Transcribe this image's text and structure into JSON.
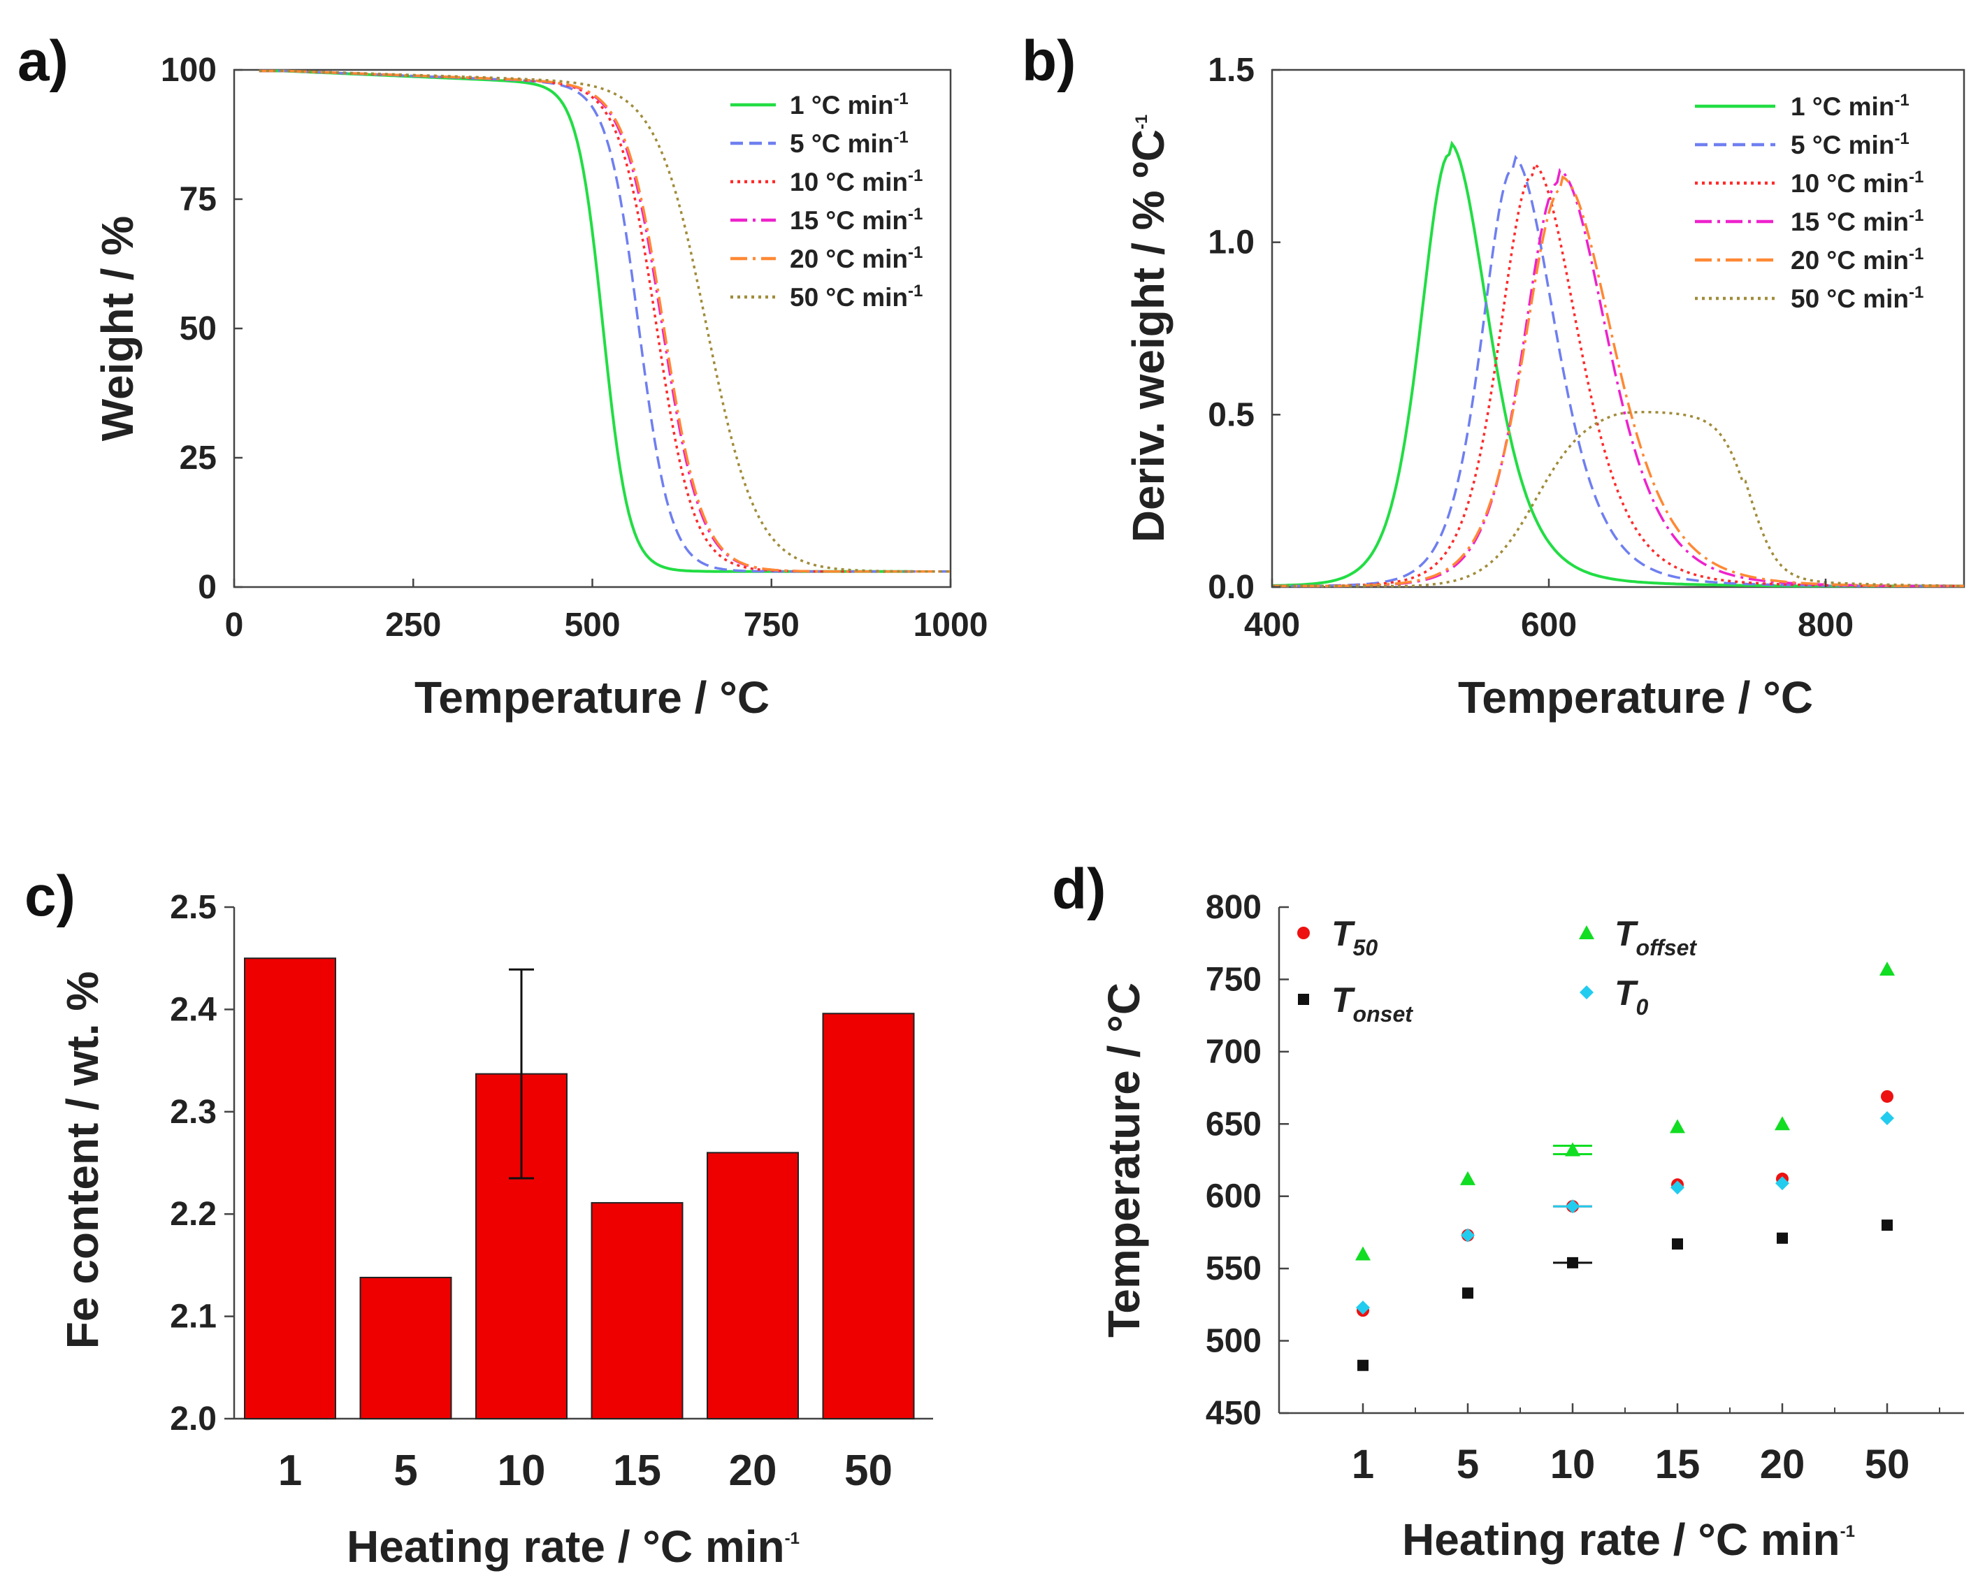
{
  "figure": {
    "panels": [
      {
        "label": "a)",
        "xlabel": "Temperature / °C",
        "ylabel": "Weight / %"
      },
      {
        "label": "b)",
        "xlabel": "Temperature / °C",
        "ylabel": "Deriv. weight / % ºC",
        "ylabel_sup": "-1"
      },
      {
        "label": "c)",
        "xlabel": "Heating rate / °C min",
        "xlabel_sup": "-1",
        "ylabel": "Fe content / wt. %"
      },
      {
        "label": "d)",
        "xlabel": "Heating rate / °C min",
        "xlabel_sup": "-1",
        "ylabel": "Temperature / °C"
      }
    ]
  },
  "chart_data": [
    {
      "id": "a",
      "type": "line",
      "title": "",
      "xlabel": "Temperature / °C",
      "ylabel": "Weight / %",
      "xlim": [
        0,
        1000
      ],
      "ylim": [
        0,
        100
      ],
      "xticks": [
        "0",
        "250",
        "500",
        "750",
        "1000"
      ],
      "yticks": [
        "0",
        "25",
        "50",
        "75",
        "100"
      ],
      "legend_position": "top-right",
      "series": [
        {
          "name": "1 °C min",
          "sup": "-1",
          "color": "#22dd44",
          "dash": "solid",
          "mid": 515,
          "width": 18,
          "residual": 3
        },
        {
          "name": "5 °C min",
          "sup": "-1",
          "color": "#6f7ff0",
          "dash": "dashed",
          "mid": 565,
          "width": 22,
          "residual": 3
        },
        {
          "name": "10 °C min",
          "sup": "-1",
          "color": "#ff2a2a",
          "dash": "dotted",
          "mid": 590,
          "width": 26,
          "residual": 3
        },
        {
          "name": "15 °C min",
          "sup": "-1",
          "color": "#ee22cc",
          "dash": "dashdot",
          "mid": 598,
          "width": 27,
          "residual": 3
        },
        {
          "name": "20 °C min",
          "sup": "-1",
          "color": "#ff8833",
          "dash": "dashdot",
          "mid": 600,
          "width": 27,
          "residual": 3
        },
        {
          "name": "50 °C min",
          "sup": "-1",
          "color": "#a08c3a",
          "dash": "dotted",
          "mid": 660,
          "width": 35,
          "residual": 3
        }
      ]
    },
    {
      "id": "b",
      "type": "line",
      "title": "",
      "xlabel": "Temperature / °C",
      "ylabel": "Deriv. weight / % ºC-1",
      "xlim": [
        400,
        900
      ],
      "ylim": [
        0,
        1.5
      ],
      "xticks": [
        "400",
        "600",
        "800"
      ],
      "yticks": [
        "0.0",
        "0.5",
        "1.0",
        "1.5"
      ],
      "legend_position": "top-right",
      "series": [
        {
          "name": "1 °C min",
          "sup": "-1",
          "color": "#22dd44",
          "dash": "solid",
          "peak_x": 528,
          "peak_y": 1.24
        },
        {
          "name": "5 °C min",
          "sup": "-1",
          "color": "#6f7ff0",
          "dash": "dashed",
          "peak_x": 574,
          "peak_y": 1.2
        },
        {
          "name": "10 °C min",
          "sup": "-1",
          "color": "#ff2a2a",
          "dash": "dotted",
          "peak_x": 588,
          "peak_y": 1.18
        },
        {
          "name": "15 °C min",
          "sup": "-1",
          "color": "#ee22cc",
          "dash": "dashdot",
          "peak_x": 607,
          "peak_y": 1.16
        },
        {
          "name": "20 °C min",
          "sup": "-1",
          "color": "#ff8833",
          "dash": "dashdot",
          "peak_x": 609,
          "peak_y": 1.14
        },
        {
          "name": "50 °C min",
          "sup": "-1",
          "color": "#a08c3a",
          "dash": "dotted",
          "peak_x": 650,
          "peak_y": 0.52
        }
      ]
    },
    {
      "id": "c",
      "type": "bar",
      "title": "",
      "xlabel": "Heating rate / °C min-1",
      "ylabel": "Fe content / wt. %",
      "categories": [
        "1",
        "5",
        "10",
        "15",
        "20",
        "50"
      ],
      "values": [
        2.45,
        2.138,
        2.337,
        2.211,
        2.26,
        2.396
      ],
      "errors": [
        null,
        null,
        0.102,
        null,
        null,
        null
      ],
      "ylim": [
        2.0,
        2.5
      ],
      "yticks": [
        "2.0",
        "2.1",
        "2.2",
        "2.3",
        "2.4",
        "2.5"
      ],
      "bar_color": "#ee0000"
    },
    {
      "id": "d",
      "type": "scatter",
      "title": "",
      "xlabel": "Heating rate / °C min-1",
      "ylabel": "Temperature / °C",
      "categories": [
        "1",
        "5",
        "10",
        "15",
        "20",
        "50"
      ],
      "ylim": [
        450,
        800
      ],
      "yticks": [
        "450",
        "500",
        "550",
        "600",
        "650",
        "700",
        "750",
        "800"
      ],
      "legend_position": "top-left",
      "series": [
        {
          "name": "T",
          "sub": "50",
          "marker": "circle",
          "color": "#ee1111",
          "values": [
            521,
            573,
            593,
            608,
            612,
            669
          ]
        },
        {
          "name": "T",
          "sub": "onset",
          "marker": "square",
          "color": "#111111",
          "values": [
            483,
            533,
            554,
            567,
            571,
            580
          ]
        },
        {
          "name": "T",
          "sub": "offset",
          "marker": "triangle",
          "color": "#11dd22",
          "values": [
            560,
            612,
            632,
            648,
            650,
            757
          ]
        },
        {
          "name": "T",
          "sub": "0",
          "marker": "diamond",
          "color": "#22ccee",
          "values": [
            523,
            573,
            593,
            606,
            609,
            654
          ]
        }
      ]
    }
  ]
}
